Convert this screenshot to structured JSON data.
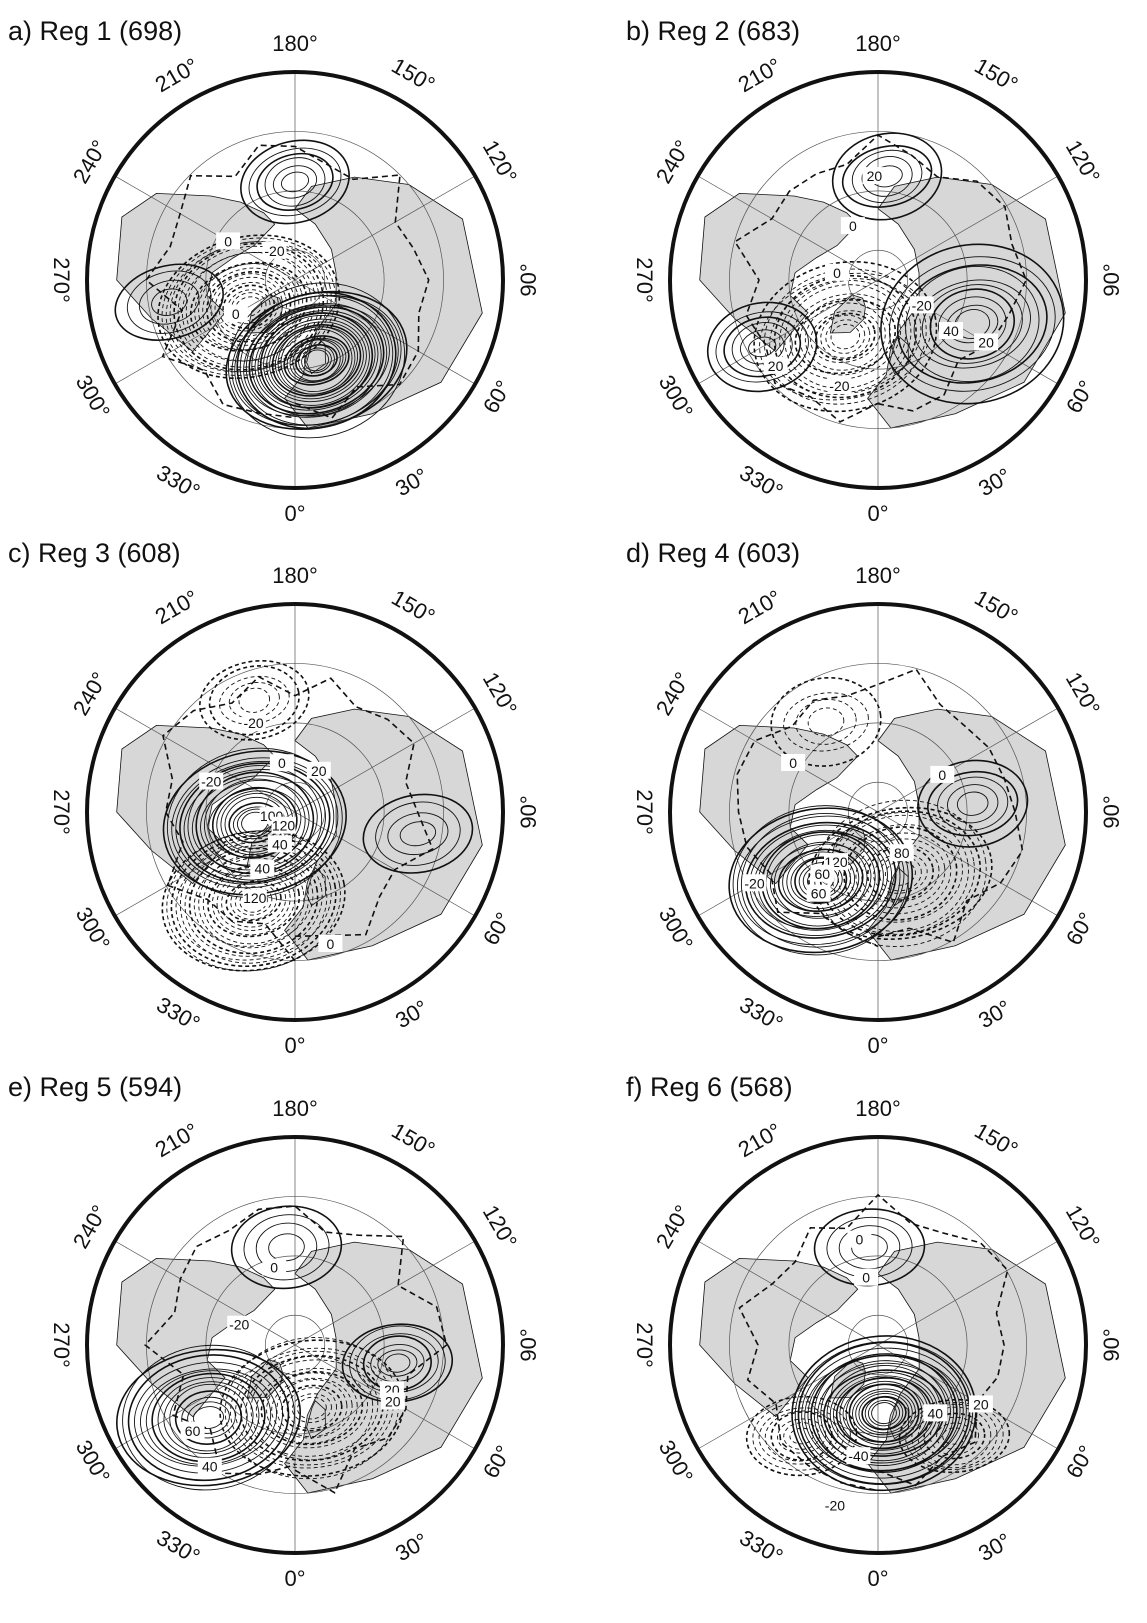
{
  "figure": {
    "panels": [
      {
        "title": "a) Reg 1 (698)",
        "contour_labels": [
          "0",
          "0",
          "-20"
        ],
        "centers": [
          {
            "lat": 62,
            "lon": 15,
            "sign": 1,
            "amp": 28,
            "kind": "main"
          },
          {
            "lat": 72,
            "lon": 300,
            "sign": -1,
            "amp": 20,
            "kind": "main"
          },
          {
            "lat": 57,
            "lon": 180,
            "sign": 1,
            "amp": 6,
            "kind": "weak"
          },
          {
            "lat": 47,
            "lon": 280,
            "sign": 1,
            "amp": 4,
            "kind": "weak"
          }
        ]
      },
      {
        "title": "b) Reg 2 (683)",
        "contour_labels": [
          "20",
          "0",
          "0",
          "-20",
          "40",
          "20",
          "-20",
          "20"
        ],
        "centers": [
          {
            "lat": 55,
            "lon": 65,
            "sign": 1,
            "amp": 10,
            "kind": "main"
          },
          {
            "lat": 68,
            "lon": 330,
            "sign": -1,
            "amp": 16,
            "kind": "main"
          },
          {
            "lat": 55,
            "lon": 175,
            "sign": 1,
            "amp": 5,
            "kind": "weak"
          },
          {
            "lat": 45,
            "lon": 300,
            "sign": 1,
            "amp": 6,
            "kind": "weak"
          }
        ]
      },
      {
        "title": "c) Reg 3 (608)",
        "contour_labels": [
          "-20",
          "0",
          "20",
          "-20",
          "100",
          "120",
          "40",
          "40",
          "120",
          "0"
        ],
        "centers": [
          {
            "lat": 76,
            "lon": 285,
            "sign": 1,
            "amp": 20,
            "kind": "main"
          },
          {
            "lat": 57,
            "lon": 335,
            "sign": -1,
            "amp": 18,
            "kind": "main"
          },
          {
            "lat": 50,
            "lon": 200,
            "sign": -1,
            "amp": 5,
            "kind": "weak"
          },
          {
            "lat": 48,
            "lon": 80,
            "sign": 1,
            "amp": 4,
            "kind": "weak"
          }
        ]
      },
      {
        "title": "d) Reg 4 (603)",
        "contour_labels": [
          "0",
          "0",
          "120",
          "60",
          "60",
          "80",
          "-20"
        ],
        "centers": [
          {
            "lat": 60,
            "lon": 320,
            "sign": 1,
            "amp": 20,
            "kind": "main"
          },
          {
            "lat": 68,
            "lon": 20,
            "sign": -1,
            "amp": 14,
            "kind": "main"
          },
          {
            "lat": 58,
            "lon": 95,
            "sign": 1,
            "amp": 5,
            "kind": "weak"
          },
          {
            "lat": 55,
            "lon": 210,
            "sign": -1,
            "amp": 4,
            "kind": "weak"
          }
        ]
      },
      {
        "title": "e) Reg 5 (594)",
        "contour_labels": [
          "0",
          "-20",
          "20",
          "60",
          "40",
          "20"
        ],
        "centers": [
          {
            "lat": 52,
            "lon": 310,
            "sign": 1,
            "amp": 14,
            "kind": "main"
          },
          {
            "lat": 68,
            "lon": 15,
            "sign": -1,
            "amp": 16,
            "kind": "main"
          },
          {
            "lat": 55,
            "lon": 80,
            "sign": 1,
            "amp": 7,
            "kind": "weak"
          },
          {
            "lat": 57,
            "lon": 185,
            "sign": 1,
            "amp": 4,
            "kind": "weak"
          }
        ]
      },
      {
        "title": "f) Reg 6 (568)",
        "contour_labels": [
          "0",
          "0",
          "40",
          "-40",
          "20",
          "-20"
        ],
        "centers": [
          {
            "lat": 67,
            "lon": 5,
            "sign": 1,
            "amp": 26,
            "kind": "main"
          },
          {
            "lat": 50,
            "lon": 320,
            "sign": -1,
            "amp": 8,
            "kind": "weak"
          },
          {
            "lat": 50,
            "lon": 40,
            "sign": -1,
            "amp": 8,
            "kind": "weak"
          },
          {
            "lat": 57,
            "lon": 185,
            "sign": 1,
            "amp": 4,
            "kind": "weak"
          }
        ]
      }
    ],
    "longitude_labels": [
      "180°",
      "150°",
      "120°",
      "90°",
      "60°",
      "30°",
      "0°",
      "330°",
      "300°",
      "270°",
      "240°",
      "210°"
    ],
    "colors": {
      "ink": "#111111",
      "land_shade": "#d7d7d7",
      "grid": "#555555"
    }
  }
}
